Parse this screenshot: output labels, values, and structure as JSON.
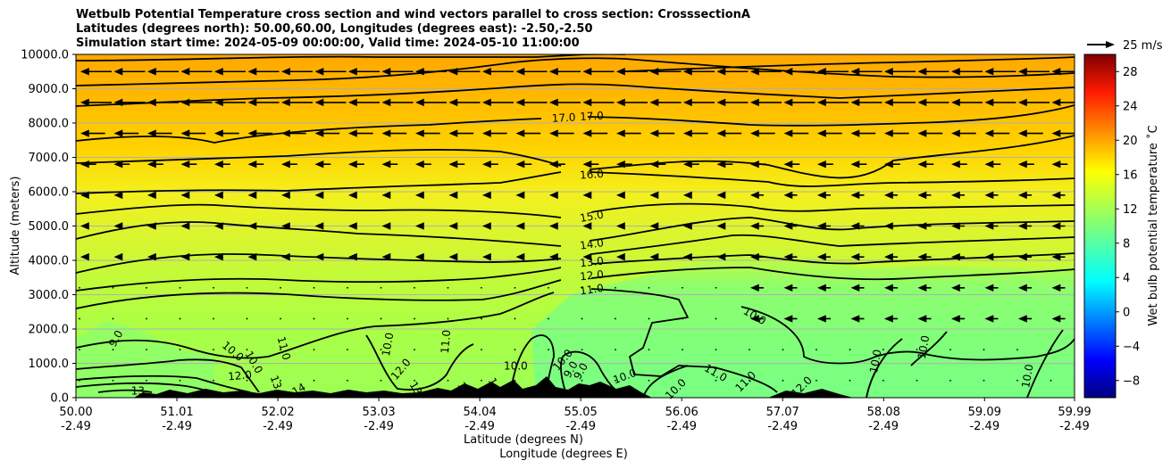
{
  "title_lines": [
    "Wetbulb Potential Temperature cross section and wind vectors parallel to cross section: CrosssectionA",
    "Latitudes (degrees north): 50.00,60.00, Longitudes (degrees east): -2.50,-2.50",
    "Simulation start time: 2024-05-09 00:00:00, Valid time: 2024-05-10 11:00:00"
  ],
  "chart_data": {
    "type": "heatmap",
    "xlabel": "Latitude (degrees N)",
    "xlabel2": "Longitude (degrees E)",
    "ylabel": "Altitude (meters)",
    "colorbar_label": "Wet bulb potential temperature ˚C",
    "colormap": "jet",
    "xlim": [
      50.0,
      59.99
    ],
    "ylim": [
      0,
      10000
    ],
    "clim": [
      -10,
      30
    ],
    "x_ticks": [
      {
        "lat": "50.00",
        "lon": "-2.49"
      },
      {
        "lat": "51.01",
        "lon": "-2.49"
      },
      {
        "lat": "52.02",
        "lon": "-2.49"
      },
      {
        "lat": "53.03",
        "lon": "-2.49"
      },
      {
        "lat": "54.04",
        "lon": "-2.49"
      },
      {
        "lat": "55.05",
        "lon": "-2.49"
      },
      {
        "lat": "56.06",
        "lon": "-2.49"
      },
      {
        "lat": "57.07",
        "lon": "-2.49"
      },
      {
        "lat": "58.08",
        "lon": "-2.49"
      },
      {
        "lat": "59.09",
        "lon": "-2.49"
      },
      {
        "lat": "59.99",
        "lon": "-2.49"
      }
    ],
    "y_ticks": [
      "0.0",
      "1000.0",
      "2000.0",
      "3000.0",
      "4000.0",
      "5000.0",
      "6000.0",
      "7000.0",
      "8000.0",
      "9000.0",
      "10000.0"
    ],
    "colorbar_ticks": [
      "28",
      "24",
      "20",
      "16",
      "12",
      "8",
      "4",
      "0",
      "−4",
      "−8"
    ],
    "grid": true,
    "quiver_key": {
      "label": "25 m/s",
      "speed": 25
    },
    "contour_labels": [
      {
        "text": "17.0",
        "lat": 54.88,
        "alt": 8150,
        "rot": -3
      },
      {
        "text": "17.0",
        "lat": 55.16,
        "alt": 8200,
        "rot": -3
      },
      {
        "text": "16.0",
        "lat": 55.16,
        "alt": 6500,
        "rot": -4
      },
      {
        "text": "15.0",
        "lat": 55.16,
        "alt": 5280,
        "rot": -10
      },
      {
        "text": "14.0",
        "lat": 55.16,
        "alt": 4470,
        "rot": -8
      },
      {
        "text": "13.0",
        "lat": 55.16,
        "alt": 3950,
        "rot": -6
      },
      {
        "text": "12.0",
        "lat": 55.16,
        "alt": 3560,
        "rot": -6
      },
      {
        "text": "11.0",
        "lat": 55.16,
        "alt": 3150,
        "rot": -8
      },
      {
        "text": "10.0",
        "lat": 56.79,
        "alt": 2380,
        "rot": 30
      },
      {
        "text": "9.0",
        "lat": 50.4,
        "alt": 1720,
        "rot": -60
      },
      {
        "text": "10.0",
        "lat": 51.57,
        "alt": 1350,
        "rot": 40
      },
      {
        "text": "11.0",
        "lat": 52.08,
        "alt": 1440,
        "rot": 75
      },
      {
        "text": "10.0",
        "lat": 51.78,
        "alt": 1030,
        "rot": 60
      },
      {
        "text": "12.0",
        "lat": 51.64,
        "alt": 640,
        "rot": -5
      },
      {
        "text": "13",
        "lat": 52.0,
        "alt": 450,
        "rot": 70
      },
      {
        "text": "14",
        "lat": 52.23,
        "alt": 240,
        "rot": -30
      },
      {
        "text": "13",
        "lat": 50.62,
        "alt": 200,
        "rot": 0
      },
      {
        "text": "12.0",
        "lat": 53.25,
        "alt": 830,
        "rot": -50
      },
      {
        "text": "10.0",
        "lat": 53.12,
        "alt": 1550,
        "rot": -80
      },
      {
        "text": "11.0",
        "lat": 53.7,
        "alt": 1630,
        "rot": -85
      },
      {
        "text": "13",
        "lat": 53.4,
        "alt": 270,
        "rot": 60
      },
      {
        "text": "12",
        "lat": 53.88,
        "alt": 260,
        "rot": 60
      },
      {
        "text": "1",
        "lat": 54.17,
        "alt": 470,
        "rot": 60
      },
      {
        "text": "10.0",
        "lat": 54.4,
        "alt": 920,
        "rot": 0
      },
      {
        "text": "10.0",
        "lat": 54.87,
        "alt": 1100,
        "rot": -50
      },
      {
        "text": "9.0",
        "lat": 54.95,
        "alt": 820,
        "rot": -60
      },
      {
        "text": "9.0",
        "lat": 55.05,
        "alt": 770,
        "rot": -60
      },
      {
        "text": "10.0",
        "lat": 55.49,
        "alt": 620,
        "rot": -20
      },
      {
        "text": "10.0",
        "lat": 56.0,
        "alt": 250,
        "rot": -45
      },
      {
        "text": "11.0",
        "lat": 56.4,
        "alt": 720,
        "rot": 30
      },
      {
        "text": "11.0",
        "lat": 56.7,
        "alt": 470,
        "rot": -45
      },
      {
        "text": "12.0",
        "lat": 57.26,
        "alt": 320,
        "rot": -45
      },
      {
        "text": "10.0",
        "lat": 58.0,
        "alt": 1060,
        "rot": -80
      },
      {
        "text": "10.0",
        "lat": 58.48,
        "alt": 1470,
        "rot": -80
      },
      {
        "text": "10.0",
        "lat": 59.52,
        "alt": 630,
        "rot": -80
      }
    ]
  },
  "colors": {
    "axis": "#000000",
    "grid": "#b0b0b0",
    "terrain": "#000000",
    "contour": "#000000",
    "vector": "#000000"
  }
}
